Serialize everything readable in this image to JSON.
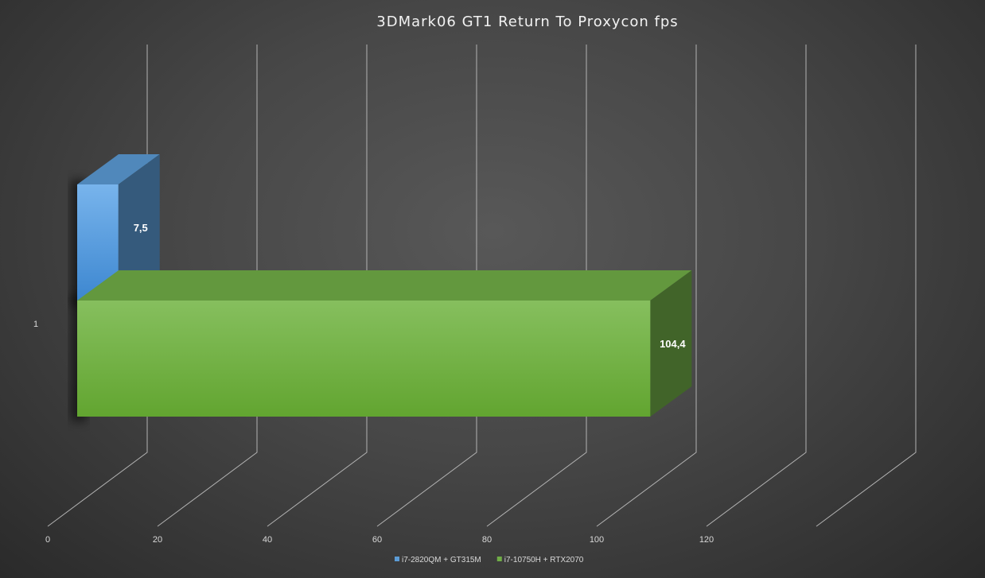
{
  "chart_data": {
    "type": "bar",
    "orientation": "horizontal",
    "style": "3d-clustered",
    "title": "3DMark06 GT1 Return To Proxycon fps",
    "categories": [
      "1"
    ],
    "series": [
      {
        "name": "i7-2820QM + GT315M",
        "values": [
          7.5
        ],
        "label": "7,5",
        "color": "#5b9bd5"
      },
      {
        "name": "i7-10750H + RTX2070",
        "values": [
          104.4
        ],
        "label": "104,4",
        "color": "#70ad47"
      }
    ],
    "x_ticks": [
      "0",
      "20",
      "40",
      "60",
      "80",
      "100",
      "120"
    ],
    "xlim": [
      0,
      140
    ],
    "grid": true,
    "legend_position": "bottom"
  }
}
